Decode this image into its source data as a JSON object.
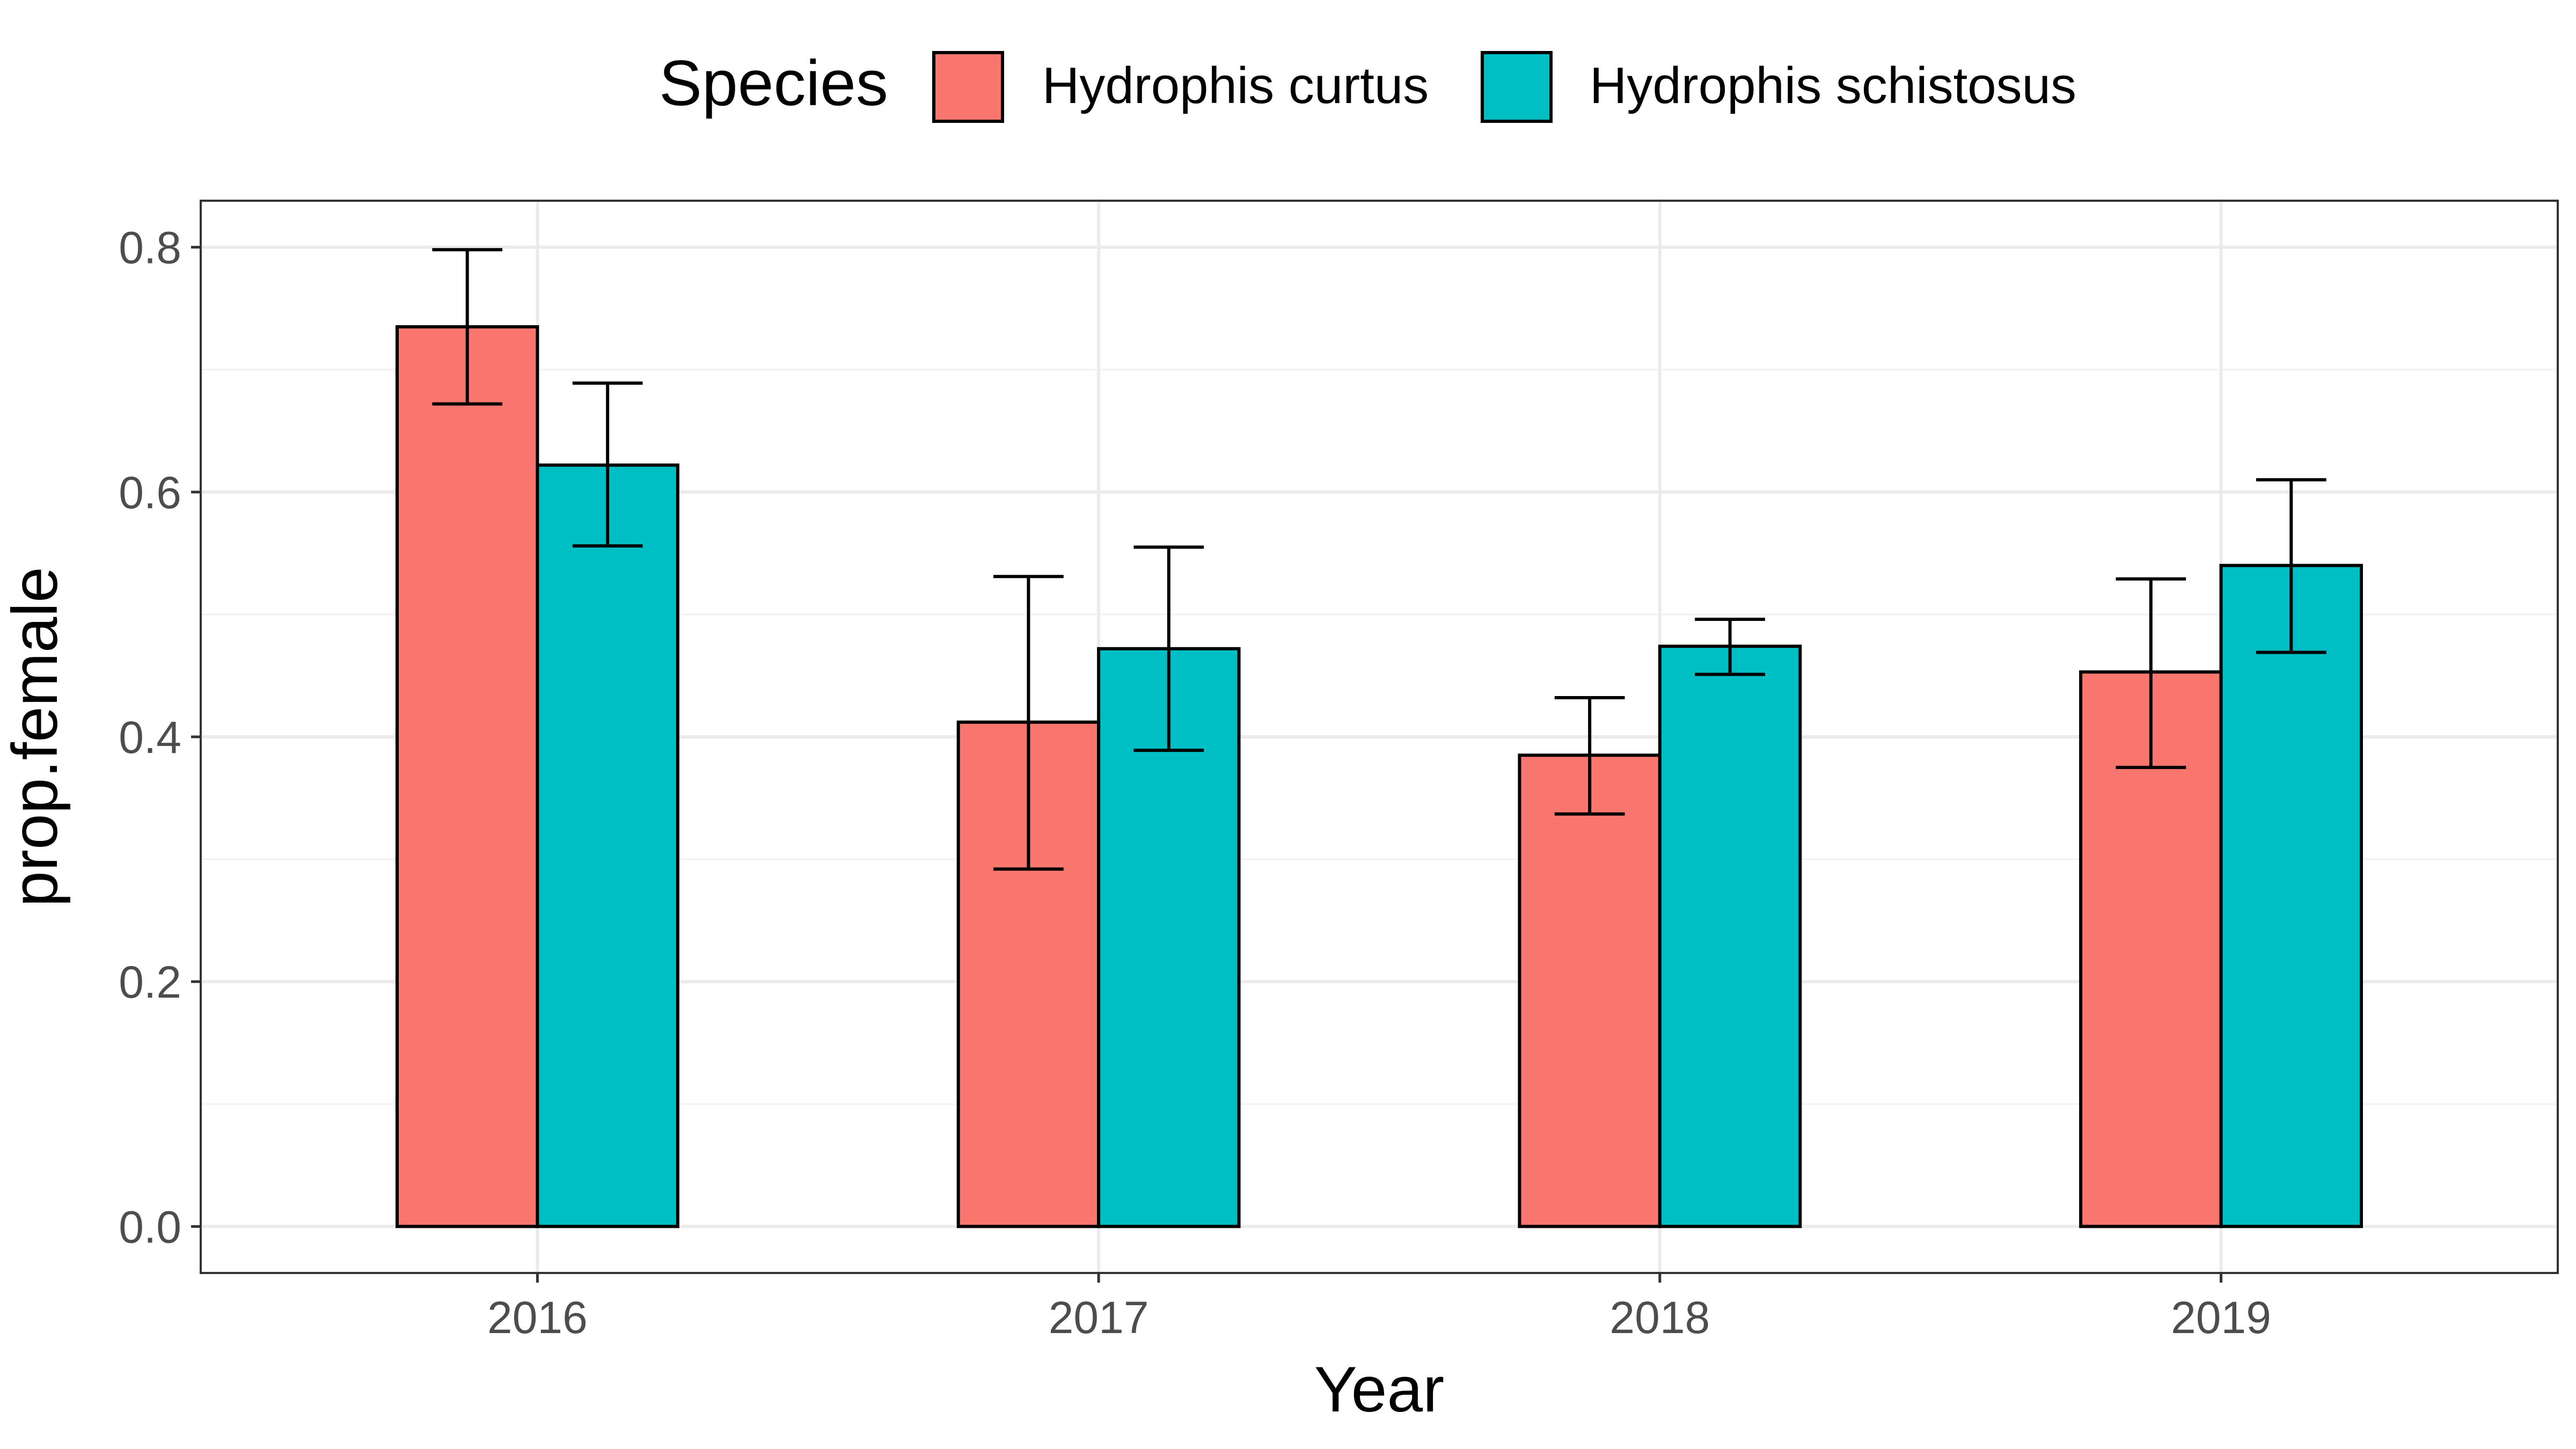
{
  "chart_data": {
    "type": "bar",
    "xlabel": "Year",
    "ylabel": "prop.female",
    "categories": [
      "2016",
      "2017",
      "2018",
      "2019"
    ],
    "ylim": [
      -0.038,
      0.838
    ],
    "yticks": [
      0.0,
      0.2,
      0.4,
      0.6,
      0.8
    ],
    "ytick_labels": [
      "0.0",
      "0.2",
      "0.4",
      "0.6",
      "0.8"
    ],
    "grid": true,
    "legend": {
      "title": "Species",
      "position": "top"
    },
    "series": [
      {
        "name": "Hydrophis curtus",
        "color": "#F8766D",
        "values": [
          0.735,
          0.412,
          0.385,
          0.453
        ],
        "err_low": [
          0.672,
          0.292,
          0.337,
          0.375
        ],
        "err_high": [
          0.798,
          0.531,
          0.432,
          0.529
        ]
      },
      {
        "name": "Hydrophis schistosus",
        "color": "#00BFC4",
        "values": [
          0.622,
          0.472,
          0.474,
          0.54
        ],
        "err_low": [
          0.556,
          0.389,
          0.451,
          0.469
        ],
        "err_high": [
          0.689,
          0.555,
          0.496,
          0.61
        ]
      }
    ]
  }
}
